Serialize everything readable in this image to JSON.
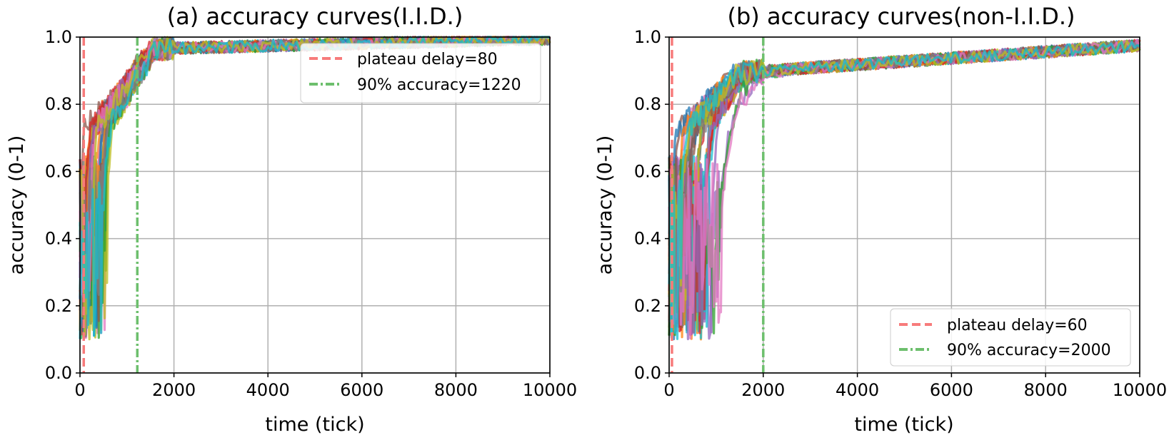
{
  "chart_data": [
    {
      "id": "a",
      "type": "line",
      "title": "(a) accuracy curves(I.I.D.)",
      "xlabel": "time (tick)",
      "ylabel": "accuracy (0-1)",
      "xlim": [
        0,
        10000
      ],
      "ylim": [
        0,
        1.0
      ],
      "xticks": [
        "0",
        "2000",
        "4000",
        "6000",
        "8000",
        "10000"
      ],
      "yticks": [
        "0.0",
        "0.2",
        "0.4",
        "0.6",
        "0.8",
        "1.0"
      ],
      "xtick_values": [
        0,
        2000,
        4000,
        6000,
        8000,
        10000
      ],
      "ytick_values": [
        0,
        0.2,
        0.4,
        0.6,
        0.8,
        1.0
      ],
      "grid": true,
      "legend_position": "top-right",
      "series_count": 30,
      "series_curve": {
        "onset_range": [
          0,
          650
        ],
        "plateau_accuracy_at_2000": 0.96,
        "plateau_accuracy_at_10000": 0.995,
        "minimum_accuracy": 0.1
      },
      "reference_lines": [
        {
          "label": "plateau delay=80",
          "x": 80,
          "style": "dashed",
          "color": "#f77b7b"
        },
        {
          "label": "90% accuracy=1220",
          "x": 1220,
          "style": "dashdot",
          "color": "#6dbf6d"
        }
      ]
    },
    {
      "id": "b",
      "type": "line",
      "title": "(b) accuracy curves(non-I.I.D.)",
      "xlabel": "time (tick)",
      "ylabel": "accuracy (0-1)",
      "xlim": [
        0,
        10000
      ],
      "ylim": [
        0,
        1.0
      ],
      "xticks": [
        "0",
        "2000",
        "4000",
        "6000",
        "8000",
        "10000"
      ],
      "yticks": [
        "0.0",
        "0.2",
        "0.4",
        "0.6",
        "0.8",
        "1.0"
      ],
      "xtick_values": [
        0,
        2000,
        4000,
        6000,
        8000,
        10000
      ],
      "ytick_values": [
        0,
        0.2,
        0.4,
        0.6,
        0.8,
        1.0
      ],
      "grid": true,
      "legend_position": "bottom-right",
      "series_count": 30,
      "series_curve": {
        "onset_range": [
          0,
          1150
        ],
        "plateau_accuracy_at_2000": 0.88,
        "plateau_accuracy_at_10000": 0.975,
        "minimum_accuracy": 0.1
      },
      "reference_lines": [
        {
          "label": "plateau delay=60",
          "x": 60,
          "style": "dashed",
          "color": "#f77b7b"
        },
        {
          "label": "90% accuracy=2000",
          "x": 2000,
          "style": "dashdot",
          "color": "#6dbf6d"
        }
      ]
    }
  ],
  "colors": {
    "series_palette": [
      "#1f77b4",
      "#ff7f0e",
      "#2ca02c",
      "#d62728",
      "#9467bd",
      "#8c564b",
      "#e377c2",
      "#7f7f7f",
      "#bcbd22",
      "#17becf"
    ],
    "grid": "#b0b0b0",
    "axes": "#000000"
  }
}
